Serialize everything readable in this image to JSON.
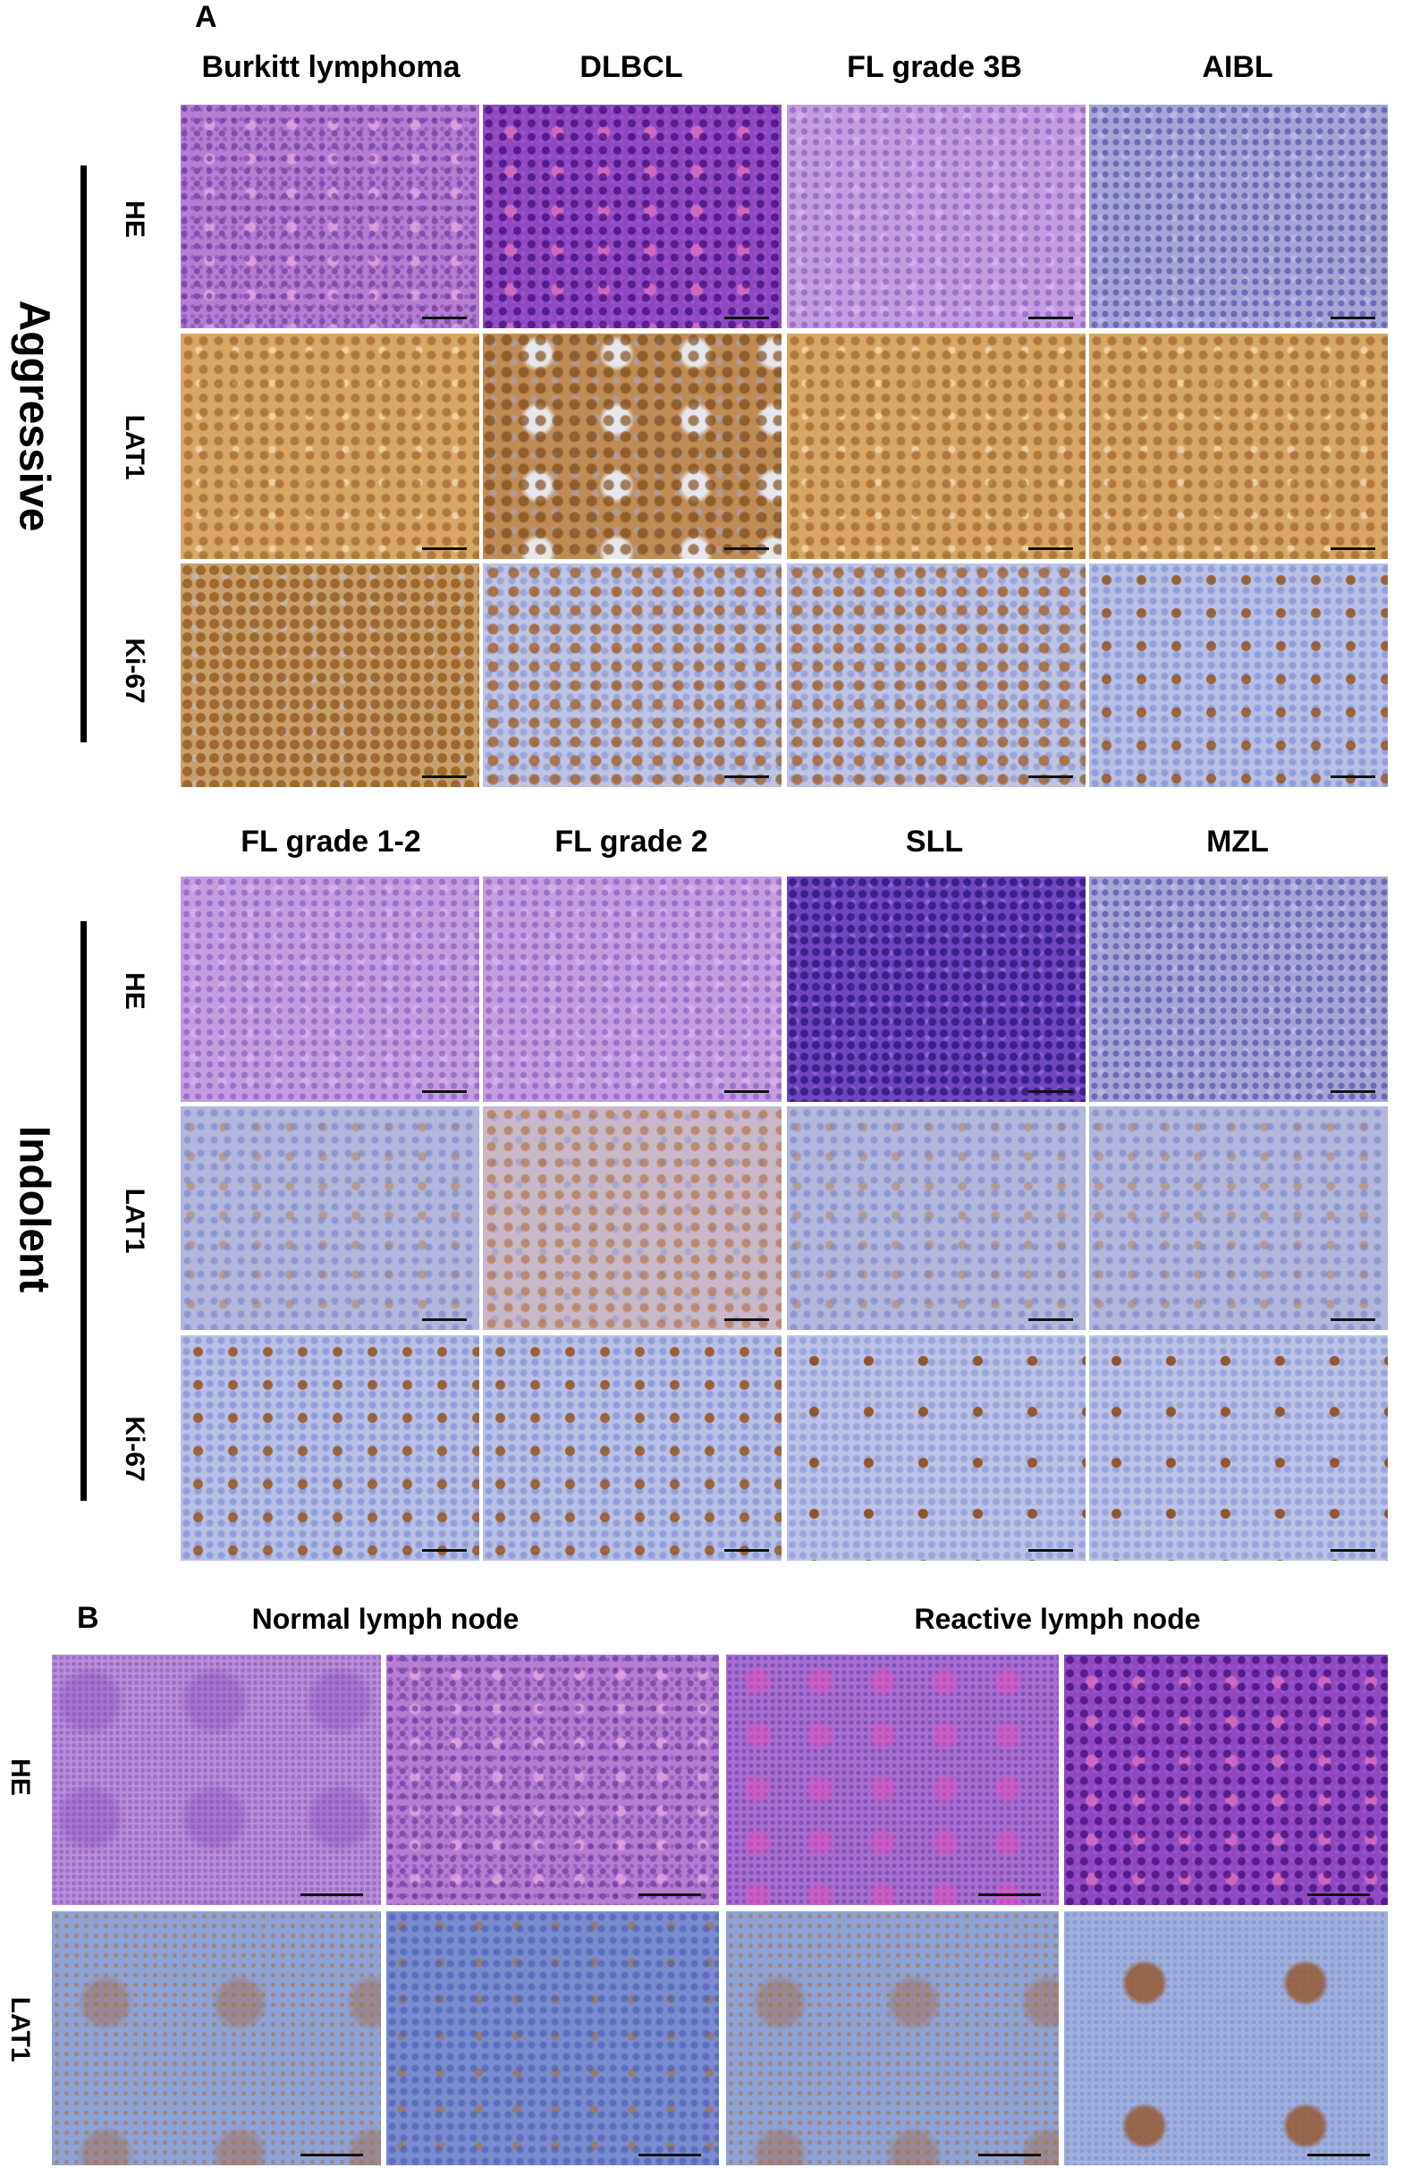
{
  "panel_a": {
    "letter": "A",
    "aggressive": {
      "group_label": "Aggressive",
      "columns": [
        "Burkitt lymphoma",
        "DLBCL",
        "FL grade 3B",
        "AIBL"
      ],
      "rows": [
        "HE",
        "LAT1",
        "Ki-67"
      ]
    },
    "indolent": {
      "group_label": "Indolent",
      "columns": [
        "FL grade 1-2",
        "FL grade 2",
        "SLL",
        "MZL"
      ],
      "rows": [
        "HE",
        "LAT1",
        "Ki-67"
      ]
    }
  },
  "panel_b": {
    "letter": "B",
    "columns": [
      "Normal lymph node",
      "Reactive lymph node"
    ],
    "rows": [
      "HE",
      "LAT1"
    ]
  }
}
